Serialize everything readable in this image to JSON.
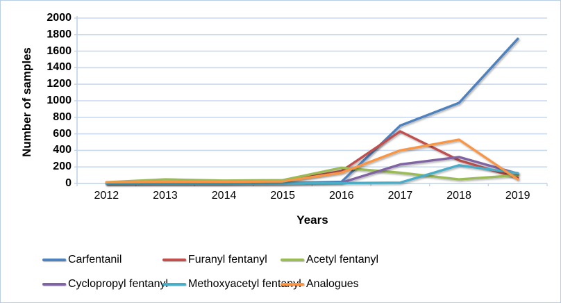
{
  "chart_data": {
    "type": "line",
    "title": "",
    "xlabel": "Years",
    "ylabel": "Number of samples",
    "categories": [
      "2012",
      "2013",
      "2014",
      "2015",
      "2016",
      "2017",
      "2018",
      "2019"
    ],
    "series": [
      {
        "name": "Carfentanil",
        "color": "#4F81BD",
        "values": [
          0,
          0,
          0,
          5,
          20,
          700,
          975,
          1750
        ]
      },
      {
        "name": "Furanyl fentanyl",
        "color": "#C0504D",
        "values": [
          5,
          10,
          10,
          25,
          150,
          630,
          280,
          70
        ]
      },
      {
        "name": "Acetyl fentanyl",
        "color": "#9BBB59",
        "values": [
          15,
          50,
          35,
          40,
          190,
          130,
          50,
          100
        ]
      },
      {
        "name": "Cyclopropyl fentanyl",
        "color": "#8064A2",
        "values": [
          0,
          0,
          0,
          0,
          10,
          230,
          320,
          120
        ]
      },
      {
        "name": "Methoxyacetyl fentanyl",
        "color": "#4BACC6",
        "values": [
          0,
          0,
          0,
          0,
          5,
          10,
          220,
          125
        ]
      },
      {
        "name": "Analogues",
        "color": "#F79646",
        "values": [
          15,
          20,
          20,
          25,
          130,
          400,
          530,
          50
        ]
      }
    ],
    "ylim": [
      0,
      2000
    ],
    "ytick_step": 200,
    "grid": true,
    "legend_position": "bottom",
    "colors": {
      "gridline": "#c9d9ef",
      "axis_line": "#bfd3ea",
      "frame_border": "#b9cde5",
      "text": "#000000"
    }
  }
}
